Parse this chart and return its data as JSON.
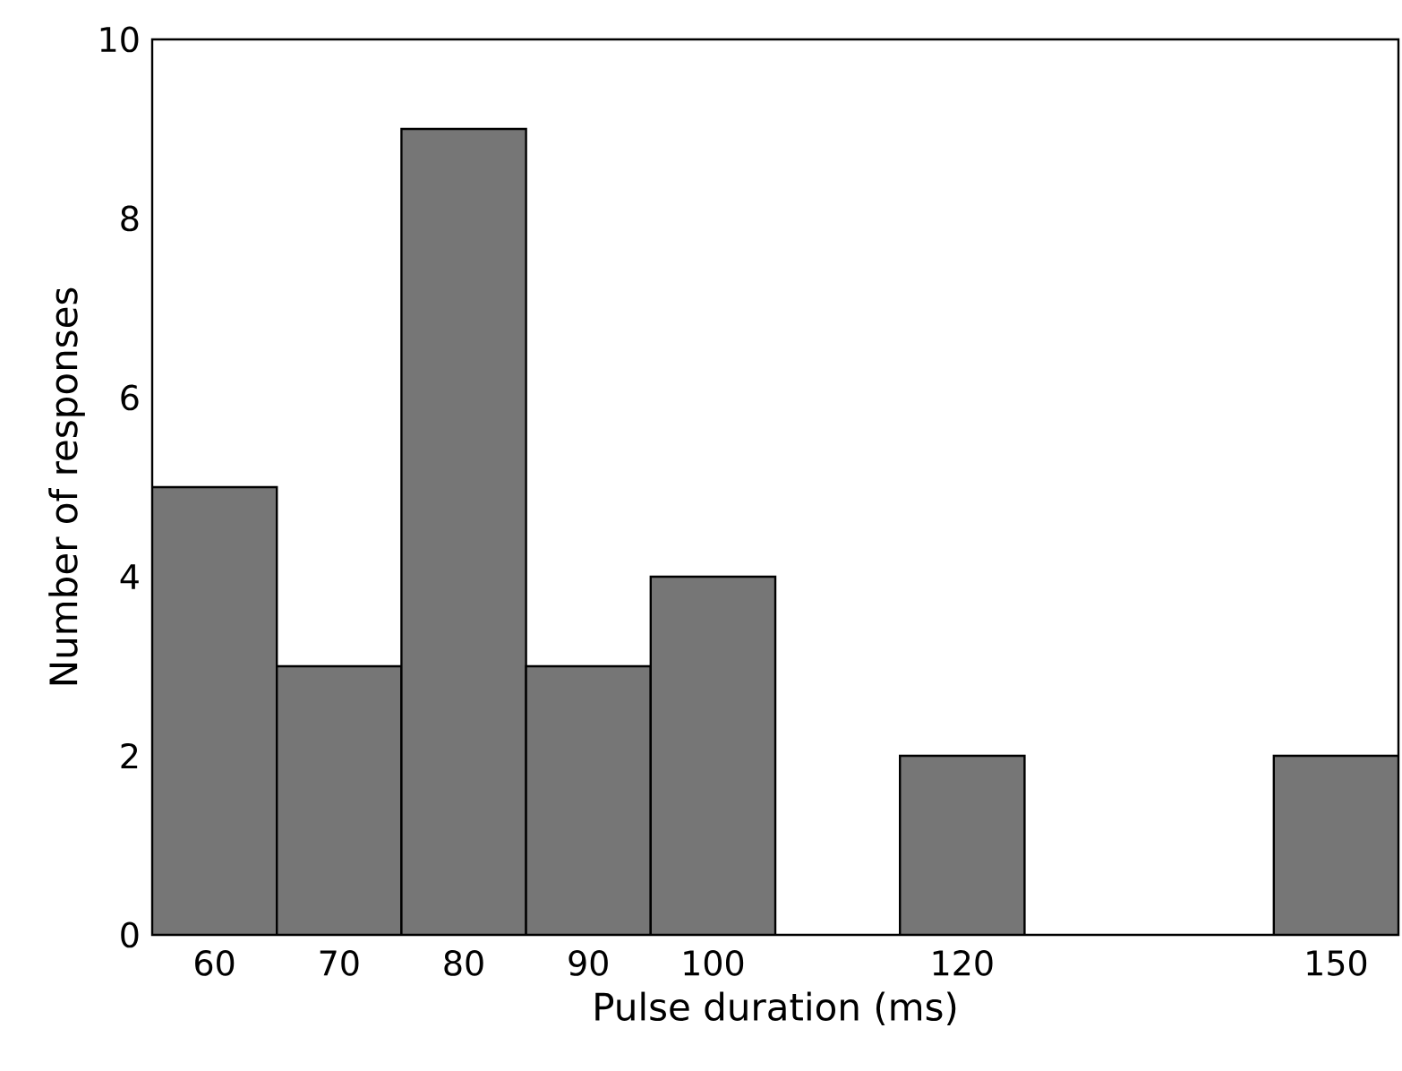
{
  "chart_data": {
    "type": "histogram",
    "xlabel": "Pulse duration (ms)",
    "ylabel": "Number of responses",
    "bins": [
      55,
      65,
      75,
      85,
      95,
      105,
      115,
      125,
      135,
      145,
      155
    ],
    "values": [
      5,
      3,
      9,
      3,
      4,
      0,
      2,
      0,
      0,
      2
    ],
    "color": "#767676",
    "xlim": [
      55,
      155
    ],
    "ylim": [
      0,
      10
    ],
    "xticks": [
      60,
      70,
      80,
      90,
      100,
      120,
      150
    ],
    "yticks": [
      0,
      2,
      4,
      6,
      8,
      10
    ]
  }
}
